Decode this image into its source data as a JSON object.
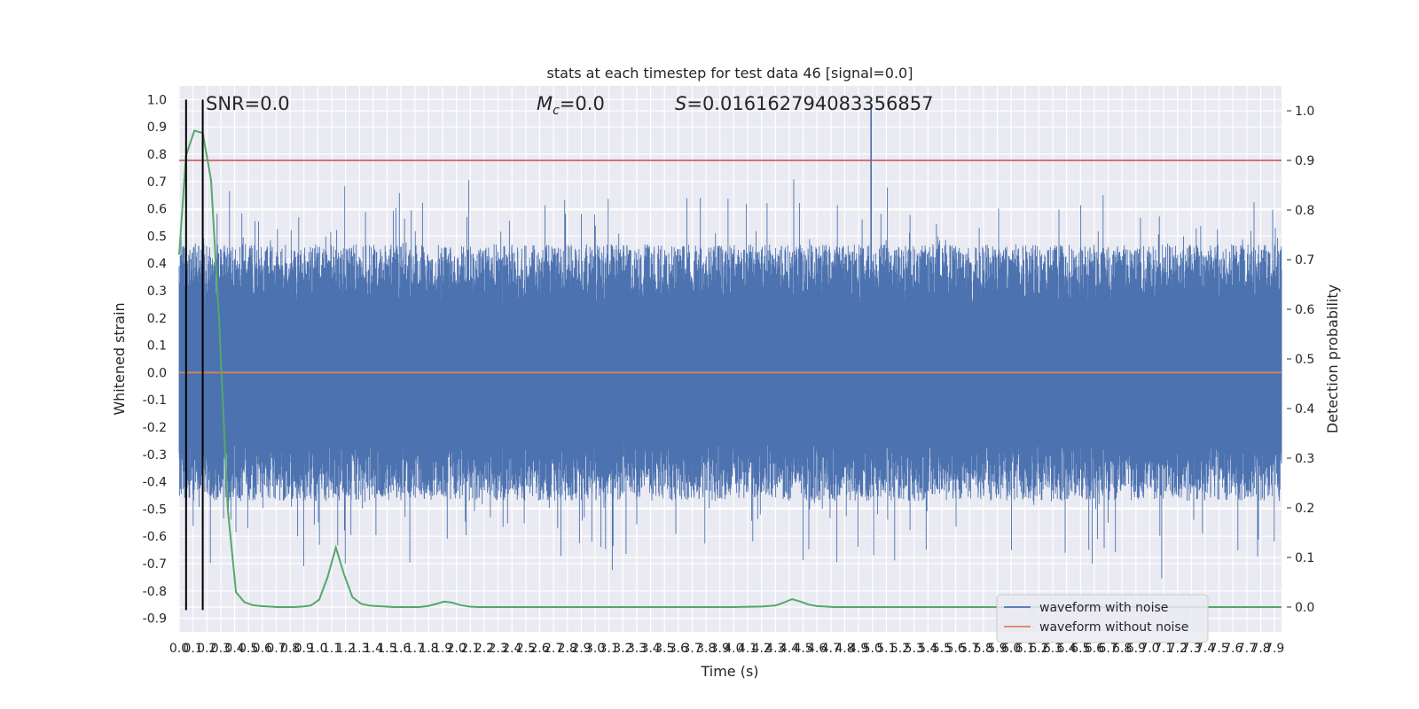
{
  "chart_data": {
    "type": "line",
    "title": "stats at each timestep for test data 46 [signal=0.0]",
    "xlabel": "Time (s)",
    "ylabel": "Whitened strain",
    "y2label": "Detection probability",
    "xlim": [
      0.0,
      7.95
    ],
    "ylim": [
      -0.95,
      1.05
    ],
    "y2lim": [
      -0.05,
      1.05
    ],
    "xticks": [
      "0.0",
      "0.1",
      "0.2",
      "0.3",
      "0.4",
      "0.5",
      "0.6",
      "0.7",
      "0.8",
      "0.9",
      "1.0",
      "1.1",
      "1.2",
      "1.3",
      "1.4",
      "1.5",
      "1.6",
      "1.7",
      "1.8",
      "1.9",
      "2.0",
      "2.1",
      "2.2",
      "2.3",
      "2.4",
      "2.5",
      "2.6",
      "2.7",
      "2.8",
      "2.9",
      "3.0",
      "3.1",
      "3.2",
      "3.3",
      "3.4",
      "3.5",
      "3.6",
      "3.7",
      "3.8",
      "3.9",
      "4.0",
      "4.1",
      "4.2",
      "4.3",
      "4.4",
      "4.5",
      "4.6",
      "4.7",
      "4.8",
      "4.9",
      "5.0",
      "5.1",
      "5.2",
      "5.3",
      "5.4",
      "5.5",
      "5.6",
      "5.7",
      "5.8",
      "5.9",
      "6.0",
      "6.1",
      "6.2",
      "6.3",
      "6.4",
      "6.5",
      "6.6",
      "6.7",
      "6.8",
      "6.9",
      "7.0",
      "7.1",
      "7.2",
      "7.3",
      "7.4",
      "7.5",
      "7.6",
      "7.7",
      "7.8",
      "7.9"
    ],
    "yticks": [
      "1.0",
      "0.9",
      "0.8",
      "0.7",
      "0.6",
      "0.5",
      "0.4",
      "0.3",
      "0.2",
      "0.1",
      "0.0",
      "-0.1",
      "-0.2",
      "-0.3",
      "-0.4",
      "-0.5",
      "-0.6",
      "-0.7",
      "-0.8",
      "-0.9"
    ],
    "y2ticks": [
      "1.0",
      "0.9",
      "0.8",
      "0.7",
      "0.6",
      "0.5",
      "0.4",
      "0.3",
      "0.2",
      "0.1",
      "0.0"
    ],
    "annotations": {
      "snr": "SNR=0.0",
      "mc_symbol": "M",
      "mc_sub": "c",
      "mc_value": "=0.0",
      "s_symbol": "S",
      "s_value": "=0.016162794083356857"
    },
    "series": [
      {
        "name": "waveform with noise",
        "color": "#4c72b0",
        "note": "dense noise trace, envelope approx ±0.25 to ±0.65 with spikes",
        "peak_x": 4.99,
        "peak_y": 1.0
      },
      {
        "name": "waveform without noise",
        "color": "#dd8452",
        "y_constant": 0.0
      },
      {
        "name": "",
        "color": "#55a868",
        "axis": "right",
        "x": [
          0.0,
          0.05,
          0.11,
          0.17,
          0.23,
          0.29,
          0.35,
          0.41,
          0.47,
          0.53,
          0.59,
          0.65,
          0.71,
          0.77,
          0.83,
          0.89,
          0.95,
          1.01,
          1.07,
          1.13,
          1.19,
          1.25,
          1.31,
          1.37,
          1.43,
          1.49,
          1.55,
          1.61,
          1.67,
          1.73,
          1.79,
          1.85,
          1.91,
          1.97,
          2.03,
          2.09,
          2.15,
          2.21,
          2.27,
          2.5,
          3.0,
          3.5,
          4.0,
          4.2,
          4.3,
          4.36,
          4.42,
          4.48,
          4.54,
          4.6,
          4.66,
          4.72,
          4.8,
          5.0,
          5.5,
          6.0,
          6.5,
          7.0,
          7.5,
          7.95
        ],
        "values": [
          0.71,
          0.91,
          0.96,
          0.955,
          0.86,
          0.57,
          0.2,
          0.03,
          0.01,
          0.004,
          0.002,
          0.001,
          0.0,
          0.0,
          0.0,
          0.001,
          0.003,
          0.015,
          0.06,
          0.12,
          0.065,
          0.02,
          0.007,
          0.003,
          0.002,
          0.001,
          0.0,
          0.0,
          0.0,
          0.0,
          0.002,
          0.006,
          0.011,
          0.009,
          0.004,
          0.001,
          0.0,
          0.0,
          0.0,
          0.0,
          0.0,
          0.0,
          0.0,
          0.001,
          0.003,
          0.009,
          0.016,
          0.011,
          0.005,
          0.002,
          0.001,
          0.0,
          0.0,
          0.0,
          0.0,
          0.0,
          0.0,
          0.0,
          0.0,
          0.0
        ]
      }
    ],
    "hlines_right_axis": [
      {
        "y": 0.9,
        "color": "#c44e52"
      }
    ],
    "vlines": [
      {
        "x": 0.05,
        "ymin": -0.87,
        "ymax": 1.0,
        "color": "#000000"
      },
      {
        "x": 0.17,
        "ymin": -0.87,
        "ymax": 1.0,
        "color": "#000000"
      }
    ],
    "grid": true,
    "legend": {
      "placement": "bottom-right",
      "entries": [
        "waveform with noise",
        "waveform without noise"
      ]
    }
  },
  "colors": {
    "plot_background": "#eaeaf2",
    "grid": "#ffffff"
  }
}
